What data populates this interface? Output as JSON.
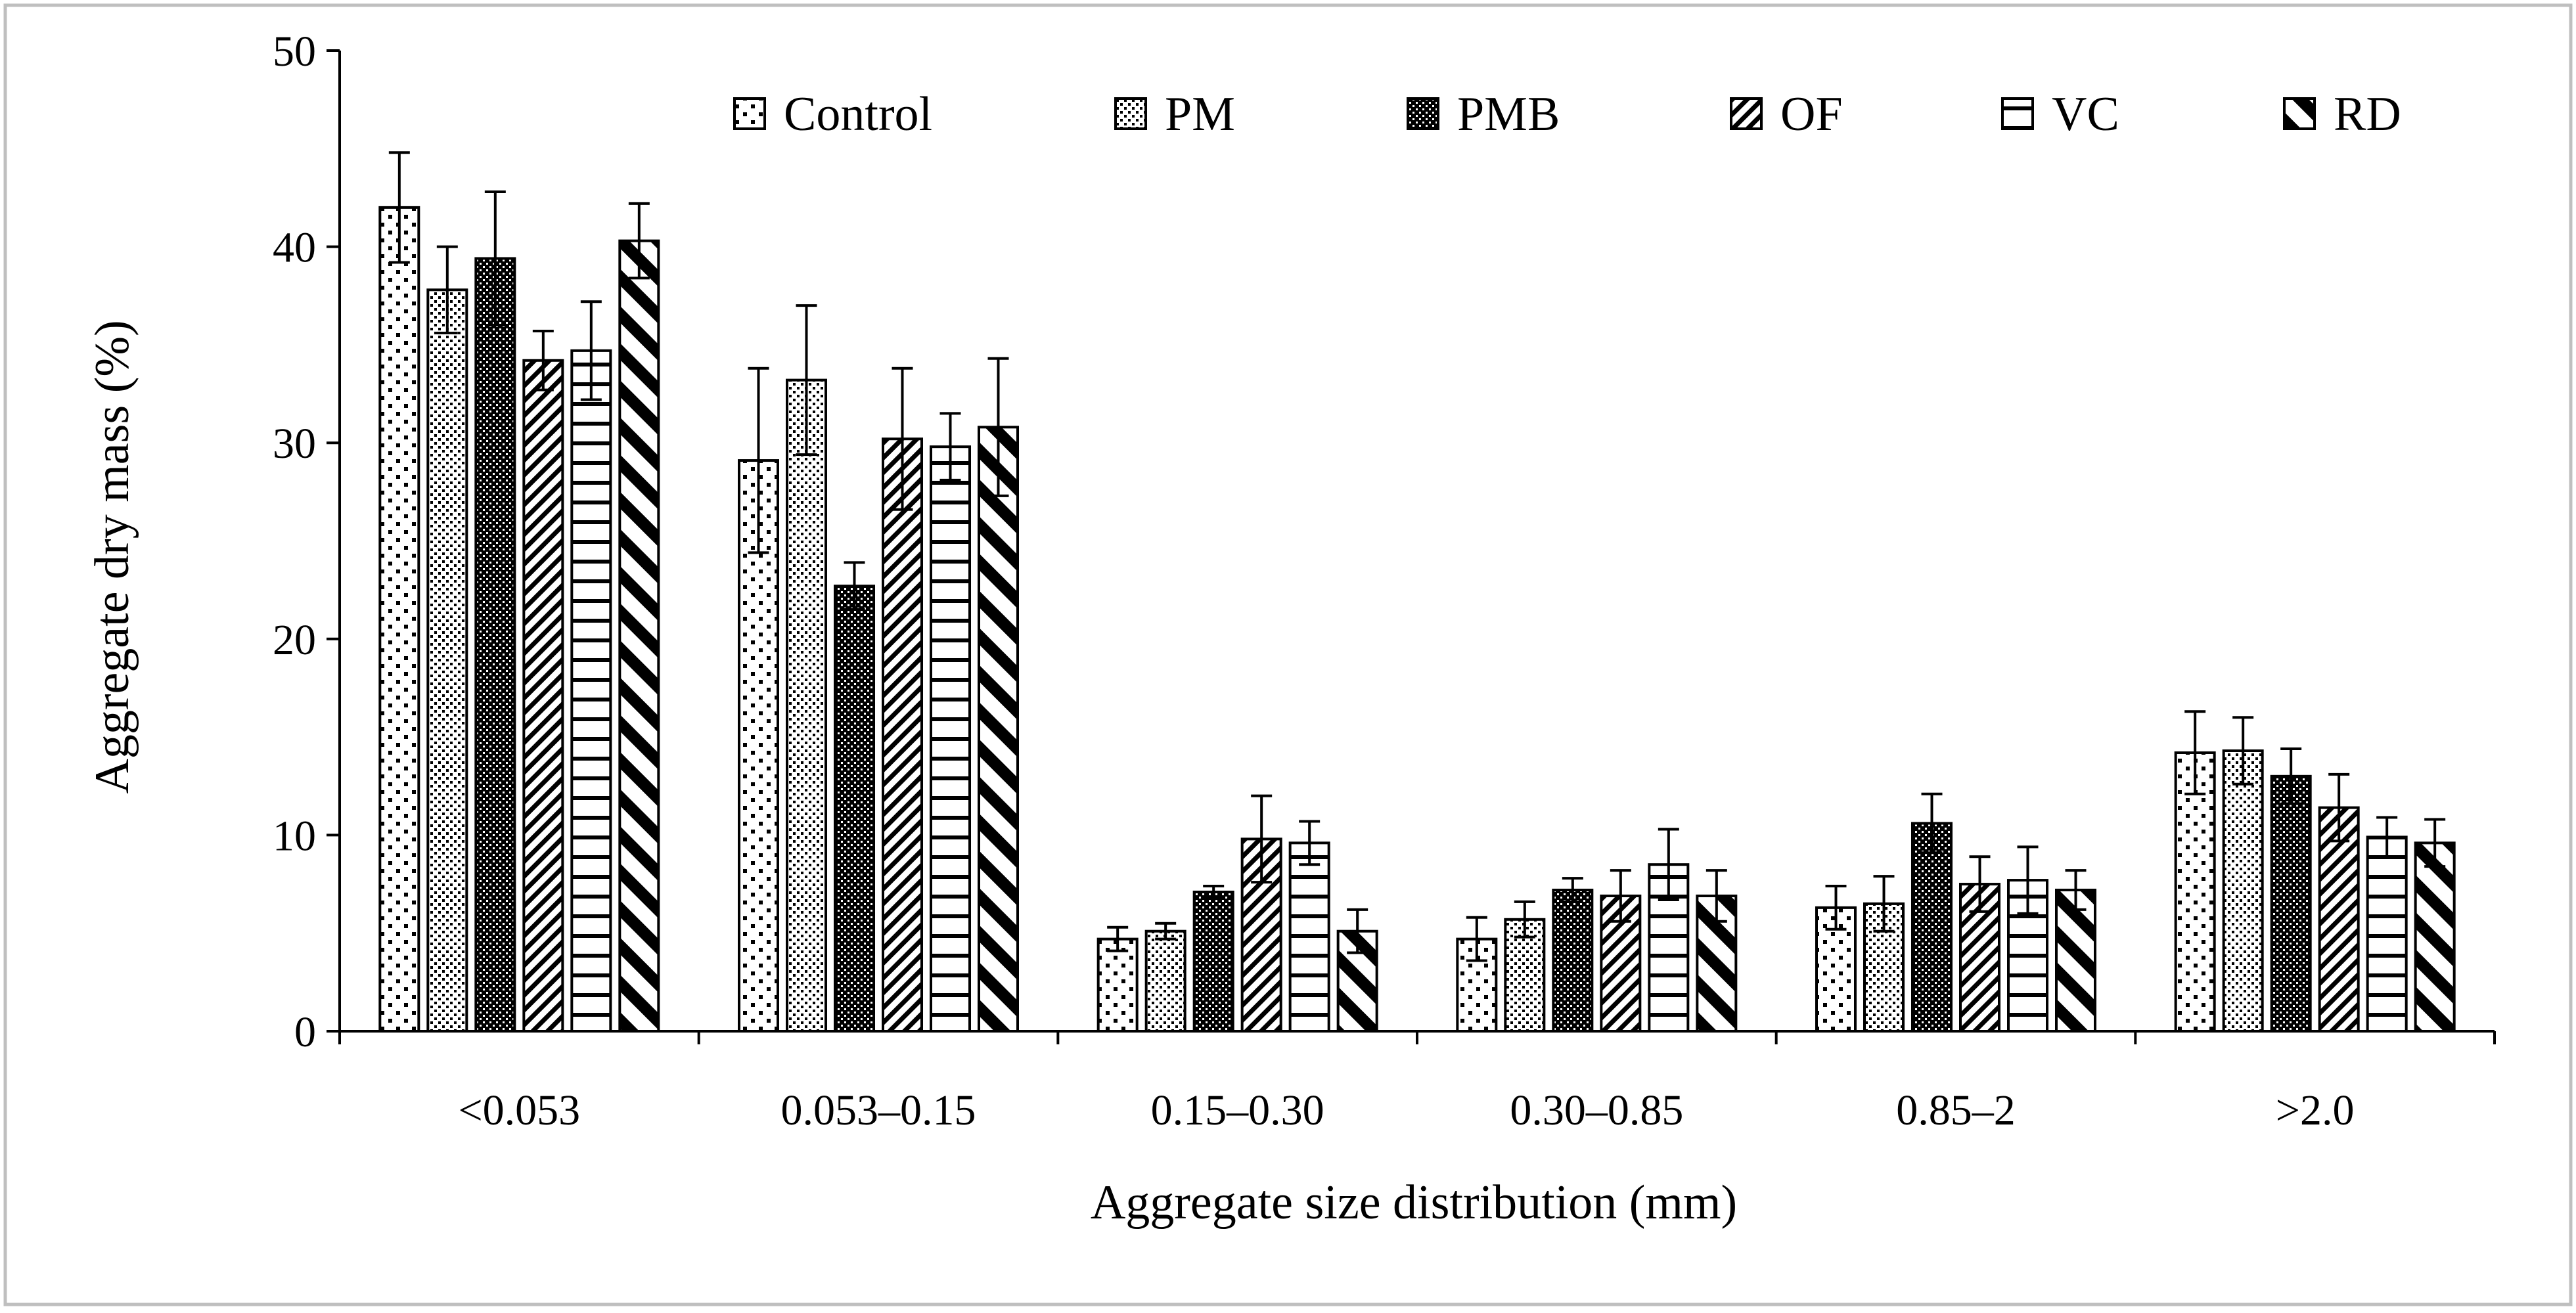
{
  "chart_data": {
    "type": "bar",
    "title": "",
    "xlabel": "Aggregate size distribution (mm)",
    "ylabel": "Aggregate dry mass (%)",
    "ylim": [
      0,
      50
    ],
    "yticks": [
      0,
      10,
      20,
      30,
      40,
      50
    ],
    "grid": false,
    "legend_position": "top",
    "categories": [
      "<0.053",
      "0.053–0.15",
      "0.15–0.30",
      "0.30–0.85",
      "0.85–2",
      ">2.0"
    ],
    "series": [
      {
        "name": "Control",
        "pattern": "dots-sparse",
        "values": [
          42.0,
          29.1,
          4.7,
          4.7,
          6.3,
          14.2
        ],
        "errors": [
          2.8,
          4.7,
          0.6,
          1.1,
          1.1,
          2.1
        ]
      },
      {
        "name": "PM",
        "pattern": "dots-dense",
        "values": [
          37.8,
          33.2,
          5.1,
          5.7,
          6.5,
          14.3
        ],
        "errors": [
          2.2,
          3.8,
          0.4,
          0.9,
          1.4,
          1.7
        ]
      },
      {
        "name": "PMB",
        "pattern": "checker-dark",
        "values": [
          39.4,
          22.7,
          7.1,
          7.2,
          10.6,
          13.0
        ],
        "errors": [
          3.4,
          1.2,
          0.3,
          0.6,
          1.5,
          1.4
        ]
      },
      {
        "name": "OF",
        "pattern": "diag-fine",
        "values": [
          34.2,
          30.2,
          9.8,
          6.9,
          7.5,
          11.4
        ],
        "errors": [
          1.5,
          3.6,
          2.2,
          1.3,
          1.4,
          1.7
        ]
      },
      {
        "name": "VC",
        "pattern": "horizontal",
        "values": [
          34.7,
          29.8,
          9.6,
          8.5,
          7.7,
          9.9
        ],
        "errors": [
          2.5,
          1.7,
          1.1,
          1.8,
          1.7,
          1.0
        ]
      },
      {
        "name": "RD",
        "pattern": "diag-wide",
        "values": [
          40.3,
          30.8,
          5.1,
          6.9,
          7.2,
          9.6
        ],
        "errors": [
          1.9,
          3.5,
          1.1,
          1.3,
          1.0,
          1.2
        ]
      }
    ]
  }
}
